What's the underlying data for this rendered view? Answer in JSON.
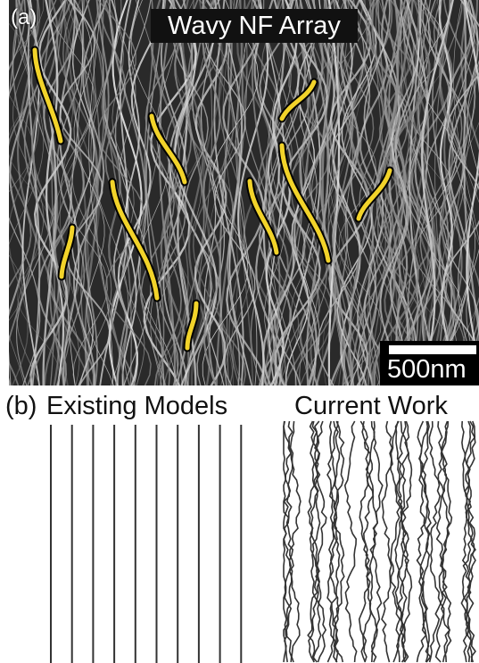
{
  "panel_a": {
    "label": "(a)",
    "title": "Wavy NF Array",
    "scale_bar_text": "500nm",
    "highlight_color": "#f2d32a"
  },
  "panel_b": {
    "label": "(b)",
    "left_title": "Existing Models",
    "right_title": "Current Work",
    "line_color": "#333333"
  }
}
